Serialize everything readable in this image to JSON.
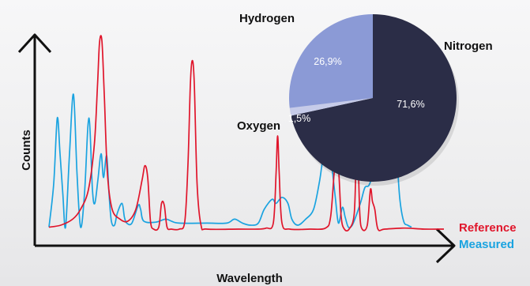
{
  "chart_data": [
    {
      "type": "line",
      "xlabel": "Wavelength",
      "ylabel": "Counts",
      "grid": false,
      "legend_position": "bottom-right",
      "x_range": [
        0,
        100
      ],
      "y_range": [
        0,
        100
      ],
      "series": [
        {
          "name": "Reference",
          "color": "#e0152b",
          "values": [
            [
              0,
              3
            ],
            [
              3,
              4
            ],
            [
              6,
              7
            ],
            [
              8,
              12
            ],
            [
              10,
              22
            ],
            [
              11.5,
              45
            ],
            [
              12.3,
              75
            ],
            [
              12.8,
              96
            ],
            [
              13.4,
              97
            ],
            [
              14,
              70
            ],
            [
              14.8,
              30
            ],
            [
              16,
              12
            ],
            [
              18,
              7
            ],
            [
              20,
              6
            ],
            [
              22,
              12
            ],
            [
              23.6,
              27
            ],
            [
              24.3,
              34
            ],
            [
              25,
              28
            ],
            [
              25.7,
              6
            ],
            [
              26.5,
              2
            ],
            [
              27.8,
              3
            ],
            [
              28.5,
              15
            ],
            [
              29.2,
              14
            ],
            [
              29.9,
              3
            ],
            [
              31,
              2
            ],
            [
              33,
              2
            ],
            [
              34.4,
              6
            ],
            [
              35.2,
              35
            ],
            [
              35.8,
              75
            ],
            [
              36.3,
              87
            ],
            [
              36.8,
              75
            ],
            [
              37.5,
              25
            ],
            [
              38.5,
              4
            ],
            [
              40,
              2
            ],
            [
              48,
              2
            ],
            [
              53,
              2
            ],
            [
              55,
              2.5
            ],
            [
              56.8,
              5
            ],
            [
              57.5,
              30
            ],
            [
              57.9,
              49
            ],
            [
              58.3,
              30
            ],
            [
              59,
              5
            ],
            [
              61,
              2
            ],
            [
              66,
              2
            ],
            [
              70,
              2.5
            ],
            [
              71.3,
              8
            ],
            [
              72.2,
              30
            ],
            [
              72.8,
              40
            ],
            [
              73.4,
              30
            ],
            [
              74,
              8
            ],
            [
              74.8,
              2
            ],
            [
              76,
              2
            ],
            [
              77.3,
              10
            ],
            [
              77.8,
              40
            ],
            [
              78.2,
              41
            ],
            [
              78.7,
              10
            ],
            [
              79.3,
              2
            ],
            [
              80.6,
              4
            ],
            [
              81.4,
              22
            ],
            [
              81.9,
              16
            ],
            [
              82.5,
              12
            ],
            [
              83.3,
              2
            ],
            [
              85,
              2
            ],
            [
              90,
              2.5
            ],
            [
              95,
              2
            ],
            [
              100,
              2
            ]
          ]
        },
        {
          "name": "Measured",
          "color": "#1aa3e0",
          "values": [
            [
              0,
              3
            ],
            [
              1.2,
              25
            ],
            [
              2.1,
              58
            ],
            [
              2.8,
              40
            ],
            [
              3.5,
              20
            ],
            [
              4.2,
              3
            ],
            [
              5.2,
              40
            ],
            [
              6.2,
              70
            ],
            [
              7.1,
              30
            ],
            [
              8,
              3
            ],
            [
              9,
              20
            ],
            [
              10.1,
              58
            ],
            [
              11,
              22
            ],
            [
              11.6,
              15
            ],
            [
              12.4,
              27
            ],
            [
              13.2,
              40
            ],
            [
              13.8,
              28
            ],
            [
              14.6,
              39
            ],
            [
              15.2,
              20
            ],
            [
              15.8,
              6
            ],
            [
              16.6,
              4
            ],
            [
              17.3,
              10
            ],
            [
              18.5,
              15
            ],
            [
              19.1,
              8
            ],
            [
              19.7,
              5
            ],
            [
              21,
              5
            ],
            [
              22.6,
              14
            ],
            [
              23.2,
              12
            ],
            [
              24,
              6
            ],
            [
              27,
              5.5
            ],
            [
              29.5,
              7
            ],
            [
              31,
              6
            ],
            [
              33,
              5
            ],
            [
              40,
              5
            ],
            [
              45,
              5
            ],
            [
              47,
              7
            ],
            [
              49,
              5
            ],
            [
              51,
              4
            ],
            [
              53,
              5
            ],
            [
              54.5,
              12
            ],
            [
              56.5,
              17
            ],
            [
              57.5,
              15
            ],
            [
              59,
              18
            ],
            [
              60.5,
              15
            ],
            [
              61.5,
              7
            ],
            [
              63,
              4
            ],
            [
              65,
              7
            ],
            [
              67,
              12
            ],
            [
              68.5,
              26
            ],
            [
              69.5,
              39
            ],
            [
              70.5,
              41
            ],
            [
              71.5,
              35
            ],
            [
              72.5,
              18
            ],
            [
              73.3,
              5
            ],
            [
              74.3,
              13
            ],
            [
              75,
              8
            ],
            [
              75.8,
              3
            ],
            [
              76.8,
              4
            ],
            [
              78,
              10
            ],
            [
              79,
              16
            ],
            [
              80,
              23
            ],
            [
              81,
              24
            ],
            [
              82,
              30
            ],
            [
              82.8,
              39
            ],
            [
              83.6,
              40
            ],
            [
              84.4,
              36
            ],
            [
              85.1,
              42
            ],
            [
              85.8,
              47
            ],
            [
              86.4,
              60
            ],
            [
              86.9,
              80
            ],
            [
              87.4,
              70
            ],
            [
              88.1,
              40
            ],
            [
              88.8,
              18
            ],
            [
              89.8,
              6
            ],
            [
              90.8,
              4
            ],
            [
              91.8,
              3
            ]
          ]
        }
      ]
    },
    {
      "type": "pie",
      "slices": [
        {
          "label": "Nitrogen",
          "value": 71.6,
          "value_label": "71,6%",
          "color": "#2b2d47"
        },
        {
          "label": "Oxygen",
          "value": 1.5,
          "value_label": "1,5%",
          "color": "#c6cbe9"
        },
        {
          "label": "Hydrogen",
          "value": 26.9,
          "value_label": "26,9%",
          "color": "#8b9ad6"
        }
      ]
    }
  ]
}
